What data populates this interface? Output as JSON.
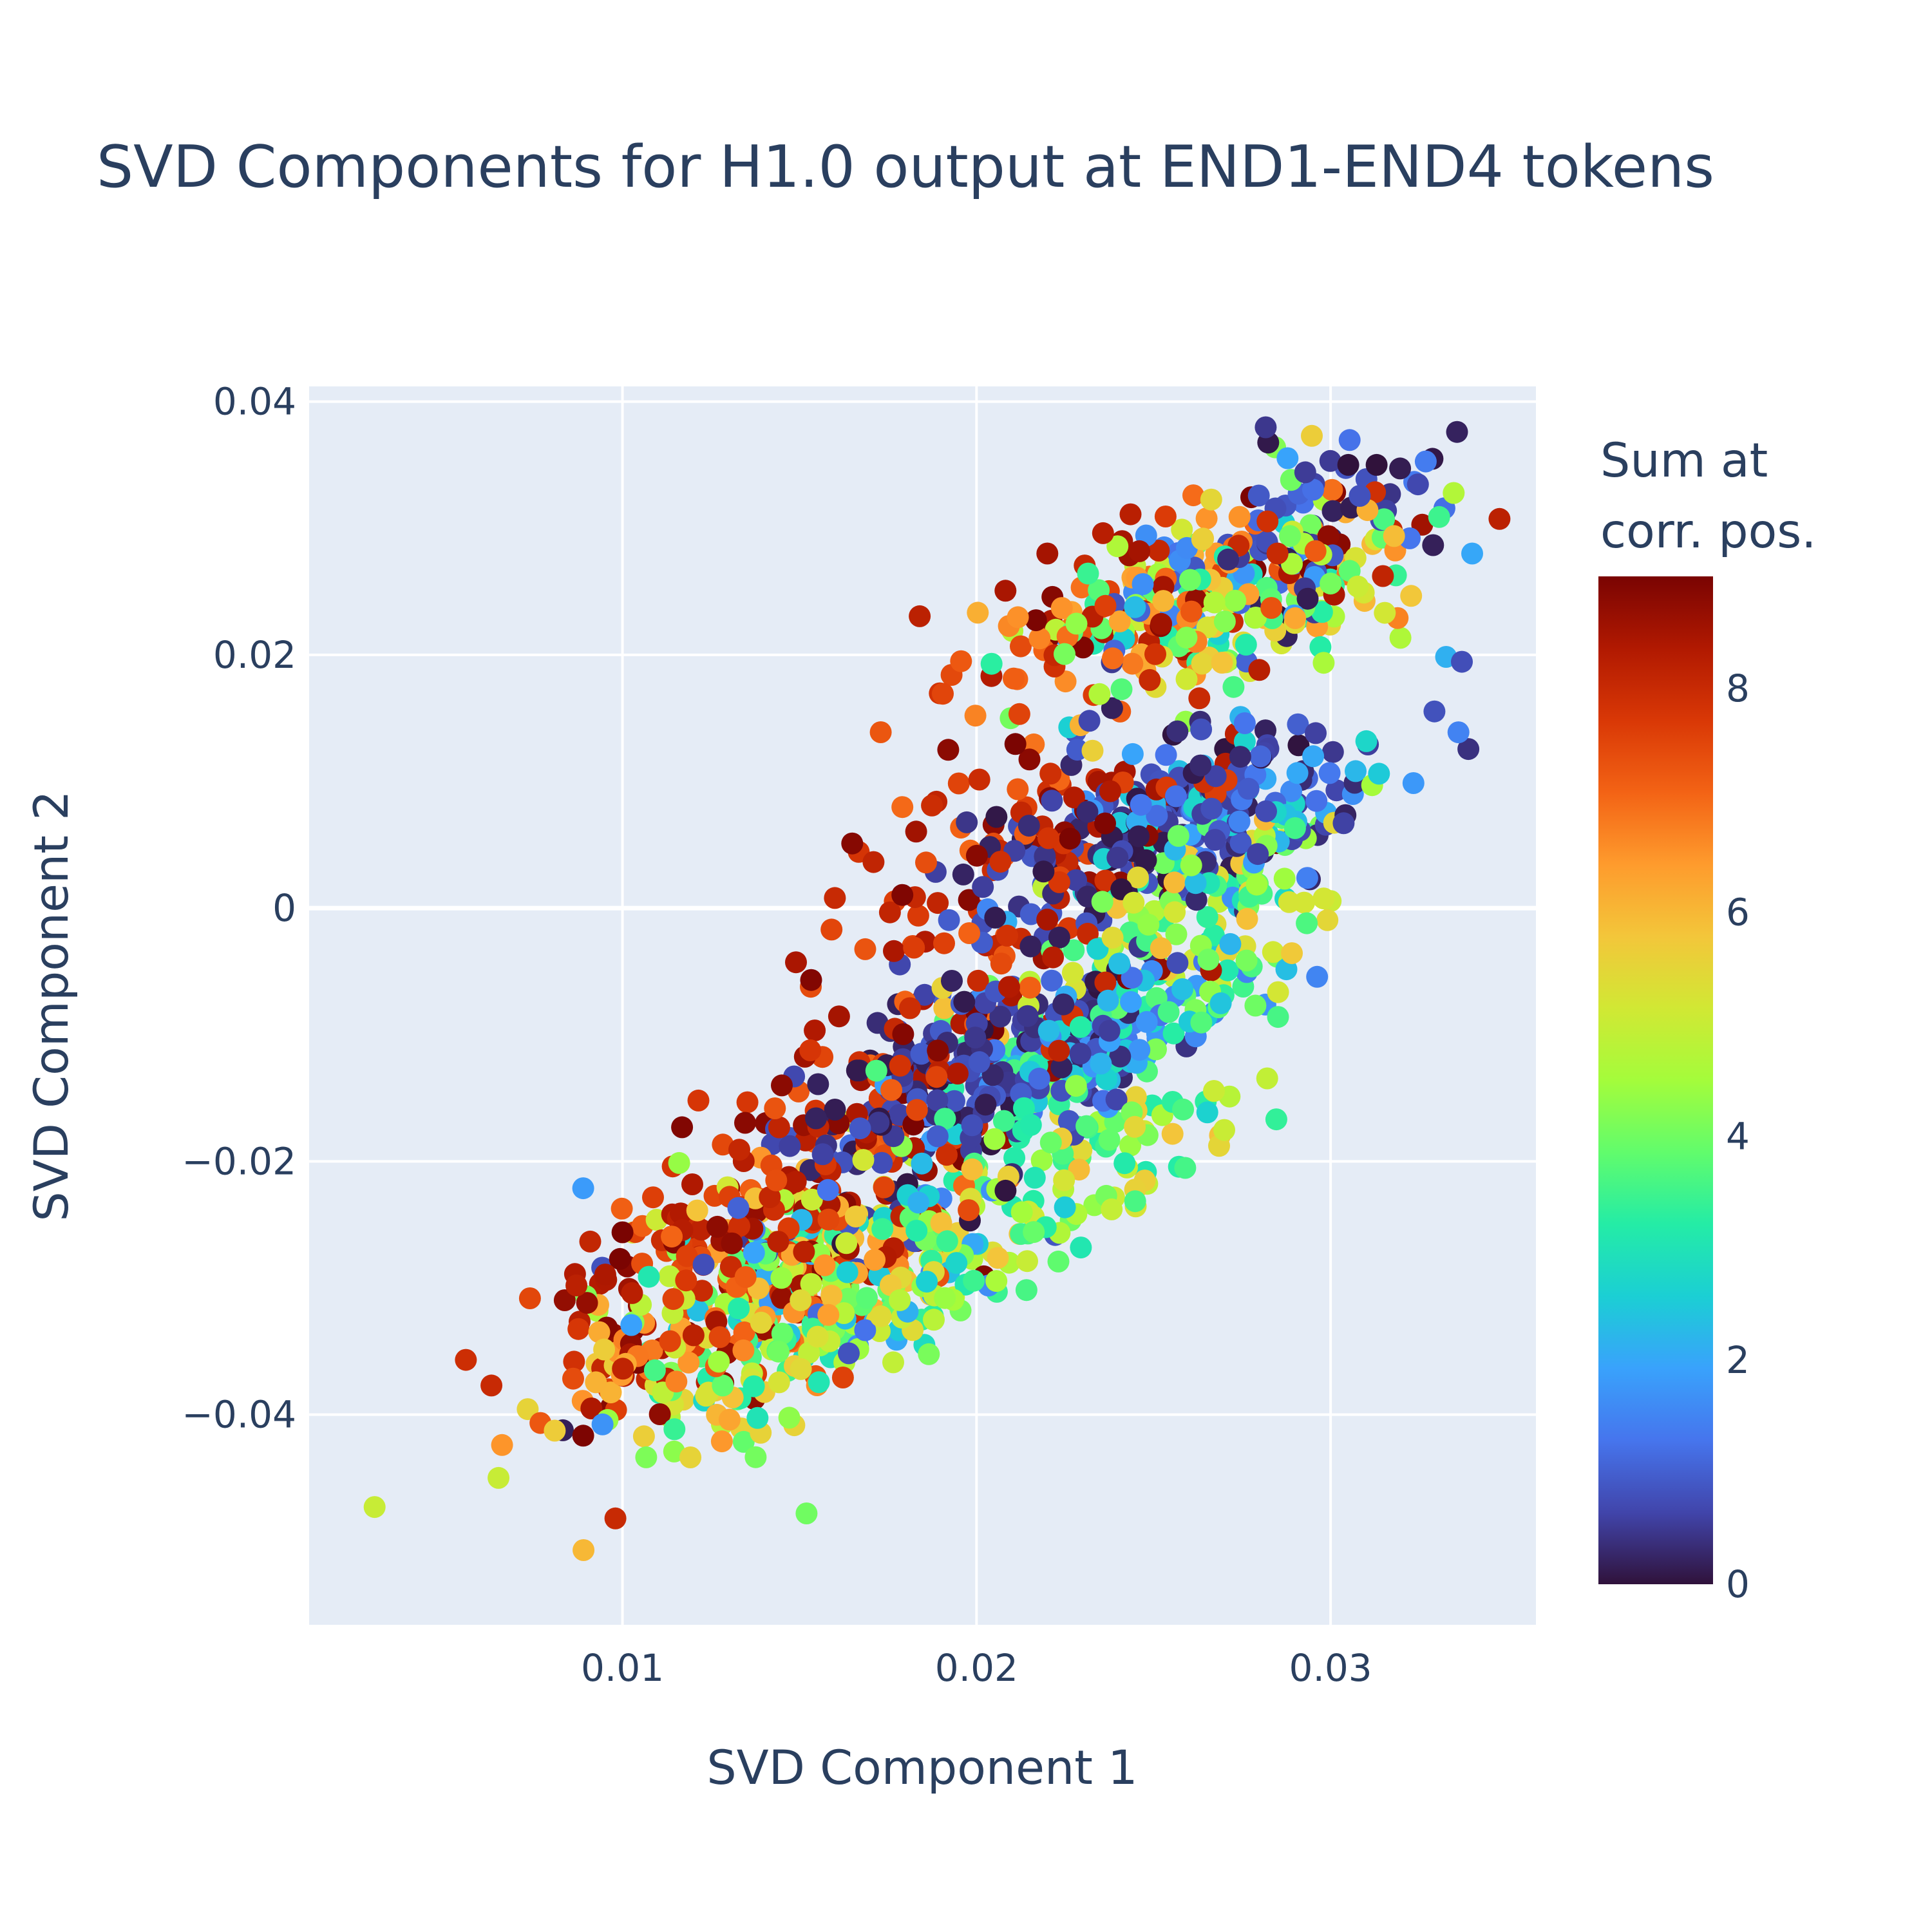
{
  "chart_data": {
    "type": "scatter",
    "title": "SVD Components for H1.0 output at END1-END4 tokens",
    "xlabel": "SVD Component 1",
    "ylabel": "SVD Component 2",
    "xlim": [
      0.00115,
      0.0358
    ],
    "ylim": [
      -0.0566,
      0.0412
    ],
    "x_ticks": [
      0.01,
      0.02,
      0.03
    ],
    "x_tick_labels": [
      "0.01",
      "0.02",
      "0.03"
    ],
    "y_ticks": [
      -0.04,
      -0.02,
      0,
      0.02,
      0.04
    ],
    "y_tick_labels": [
      "−0.04",
      "−0.02",
      "0",
      "0.02",
      "0.04"
    ],
    "grid": true,
    "plot_background": "#e5ecf6",
    "grid_color": "#ffffff",
    "colorbar": {
      "title_lines": [
        "Sum at",
        "corr. pos."
      ],
      "colorscale": "Turbo",
      "cmin": 0,
      "cmax": 9,
      "ticks": [
        0,
        2,
        4,
        6,
        8
      ],
      "tick_labels": [
        "0",
        "2",
        "4",
        "6",
        "8"
      ],
      "stops": [
        "#30123b",
        "#4145ab",
        "#4675ed",
        "#39a2fc",
        "#1bcfd4",
        "#24eca6",
        "#61fc6c",
        "#a4fc3b",
        "#d1e834",
        "#f3c63a",
        "#fe9b2d",
        "#f36315",
        "#d93806",
        "#b11901",
        "#7a0402"
      ]
    },
    "clusters": [
      {
        "x": 0.027,
        "y": 0.0265,
        "vmin": 0,
        "vmax": 9,
        "count": 190,
        "sx": 0.0028,
        "sy": 0.0045
      },
      {
        "x": 0.0235,
        "y": 0.022,
        "vmin": 6,
        "vmax": 9,
        "count": 60,
        "sx": 0.0025,
        "sy": 0.004
      },
      {
        "x": 0.0282,
        "y": 0.0235,
        "vmin": 3,
        "vmax": 6,
        "count": 70,
        "sx": 0.0025,
        "sy": 0.004
      },
      {
        "x": 0.03,
        "y": 0.03,
        "vmin": 0,
        "vmax": 2,
        "count": 50,
        "sx": 0.0018,
        "sy": 0.003
      },
      {
        "x": 0.025,
        "y": 0.006,
        "vmin": 0,
        "vmax": 1,
        "count": 170,
        "sx": 0.0028,
        "sy": 0.0045
      },
      {
        "x": 0.027,
        "y": 0.008,
        "vmin": 1,
        "vmax": 3,
        "count": 80,
        "sx": 0.0025,
        "sy": 0.004
      },
      {
        "x": 0.0215,
        "y": 0.004,
        "vmin": 7,
        "vmax": 9,
        "count": 110,
        "sx": 0.003,
        "sy": 0.006
      },
      {
        "x": 0.026,
        "y": 0.0,
        "vmin": 3,
        "vmax": 6,
        "count": 120,
        "sx": 0.0025,
        "sy": 0.0045
      },
      {
        "x": 0.02,
        "y": -0.0125,
        "vmin": 0,
        "vmax": 1,
        "count": 200,
        "sx": 0.0025,
        "sy": 0.004
      },
      {
        "x": 0.023,
        "y": -0.011,
        "vmin": 1,
        "vmax": 4,
        "count": 160,
        "sx": 0.0025,
        "sy": 0.004
      },
      {
        "x": 0.018,
        "y": -0.014,
        "vmin": 7,
        "vmax": 9,
        "count": 110,
        "sx": 0.003,
        "sy": 0.006
      },
      {
        "x": 0.023,
        "y": -0.02,
        "vmin": 3,
        "vmax": 6,
        "count": 80,
        "sx": 0.0022,
        "sy": 0.004
      },
      {
        "x": 0.015,
        "y": -0.028,
        "vmin": 0,
        "vmax": 9,
        "count": 280,
        "sx": 0.003,
        "sy": 0.005
      },
      {
        "x": 0.013,
        "y": -0.026,
        "vmin": 7,
        "vmax": 9,
        "count": 90,
        "sx": 0.0025,
        "sy": 0.004
      },
      {
        "x": 0.0175,
        "y": -0.03,
        "vmin": 2,
        "vmax": 6,
        "count": 110,
        "sx": 0.0025,
        "sy": 0.0035
      },
      {
        "x": 0.011,
        "y": -0.036,
        "vmin": 6,
        "vmax": 9,
        "count": 60,
        "sx": 0.0025,
        "sy": 0.004
      },
      {
        "x": 0.013,
        "y": -0.038,
        "vmin": 3,
        "vmax": 6,
        "count": 50,
        "sx": 0.002,
        "sy": 0.003
      }
    ],
    "points": [
      {
        "x": 0.003,
        "y": -0.0473,
        "v": 5.0
      },
      {
        "x": 0.0063,
        "y": -0.0377,
        "v": 8.0
      },
      {
        "x": 0.0065,
        "y": -0.045,
        "v": 5.0
      },
      {
        "x": 0.0066,
        "y": -0.0424,
        "v": 6.5
      },
      {
        "x": 0.0089,
        "y": -0.0507,
        "v": 6.0
      },
      {
        "x": 0.0098,
        "y": -0.0482,
        "v": 8.0
      },
      {
        "x": 0.0152,
        "y": -0.0478,
        "v": 4.0
      },
      {
        "x": 0.034,
        "y": 0.028,
        "v": 2.0
      },
      {
        "x": 0.0313,
        "y": 0.035,
        "v": 0.0
      },
      {
        "x": 0.0305,
        "y": 0.035,
        "v": 0.0
      },
      {
        "x": 0.0285,
        "y": 0.028,
        "v": 8.0
      },
      {
        "x": 0.022,
        "y": 0.028,
        "v": 8.5
      },
      {
        "x": 0.0192,
        "y": 0.0125,
        "v": 8.8
      },
      {
        "x": 0.016,
        "y": 0.0008,
        "v": 8.0
      },
      {
        "x": 0.0145,
        "y": -0.014,
        "v": 8.8
      },
      {
        "x": 0.01,
        "y": -0.0256,
        "v": 9.0
      },
      {
        "x": 0.0087,
        "y": -0.0298,
        "v": 8.2
      }
    ]
  }
}
